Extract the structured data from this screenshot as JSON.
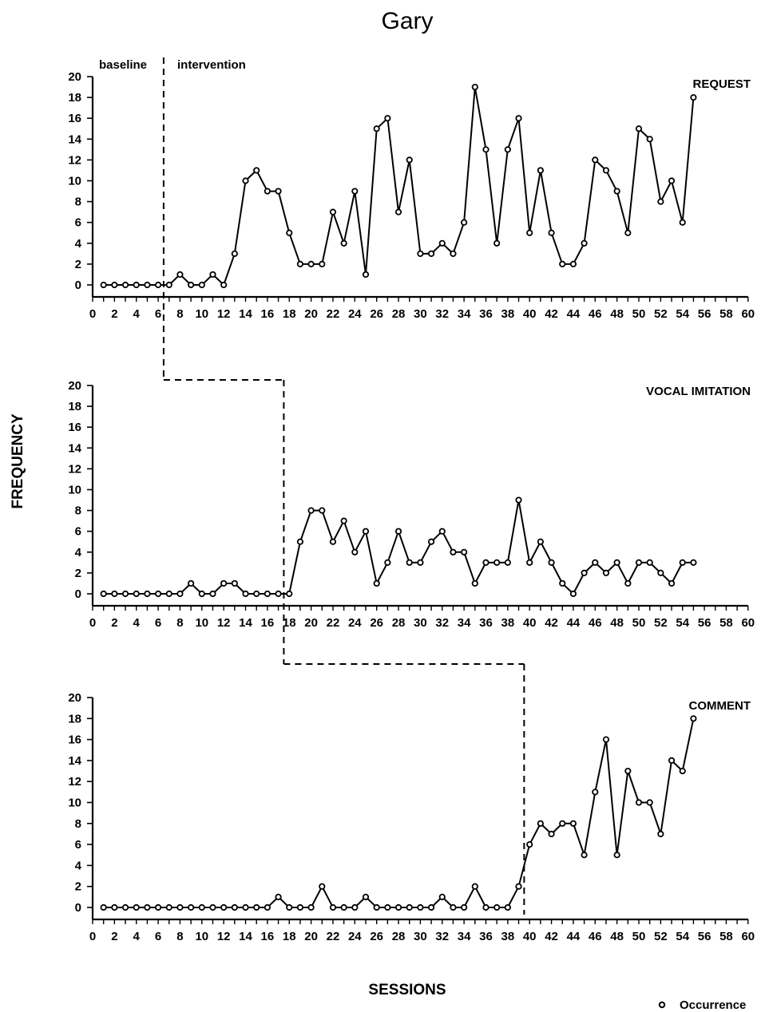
{
  "title": "Gary",
  "ylabel": "FREQUENCY",
  "xlabel": "SESSIONS",
  "legend_label": "Occurrence",
  "phase_labels": {
    "baseline": "baseline",
    "intervention": "intervention"
  },
  "chart_data": {
    "type": "line",
    "title": "Gary",
    "xlabel": "SESSIONS",
    "ylabel": "FREQUENCY",
    "xlim": [
      0,
      60
    ],
    "ylim": [
      0,
      20
    ],
    "x_ticks": [
      0,
      2,
      4,
      6,
      8,
      10,
      12,
      14,
      16,
      18,
      20,
      22,
      24,
      26,
      28,
      30,
      32,
      34,
      36,
      38,
      40,
      42,
      44,
      46,
      48,
      50,
      52,
      54,
      56,
      58,
      60
    ],
    "y_ticks": [
      0,
      2,
      4,
      6,
      8,
      10,
      12,
      14,
      16,
      18,
      20
    ],
    "legend": [
      "Occurrence"
    ],
    "legend_position": "bottom-right",
    "grid": false,
    "panels": [
      {
        "name": "REQUEST",
        "phase_change_after_session": 6.5,
        "x": [
          1,
          2,
          3,
          4,
          5,
          6,
          7,
          8,
          9,
          10,
          11,
          12,
          13,
          14,
          15,
          16,
          17,
          18,
          19,
          20,
          21,
          22,
          23,
          24,
          25,
          26,
          27,
          28,
          29,
          30,
          31,
          32,
          33,
          34,
          35,
          36,
          37,
          38,
          39,
          40,
          41,
          42,
          43,
          44,
          45,
          46,
          47,
          48,
          49,
          50,
          51,
          52,
          53,
          54,
          55
        ],
        "y": [
          0,
          0,
          0,
          0,
          0,
          0,
          0,
          1,
          0,
          0,
          1,
          0,
          3,
          10,
          11,
          9,
          9,
          5,
          2,
          2,
          2,
          7,
          4,
          9,
          1,
          15,
          16,
          7,
          12,
          3,
          3,
          4,
          3,
          6,
          19,
          13,
          4,
          13,
          16,
          5,
          11,
          5,
          2,
          2,
          4,
          12,
          11,
          9,
          5,
          15,
          14,
          8,
          10,
          6,
          18
        ]
      },
      {
        "name": "VOCAL IMITATION",
        "phase_change_after_session": 17.5,
        "x": [
          1,
          2,
          3,
          4,
          5,
          6,
          7,
          8,
          9,
          10,
          11,
          12,
          13,
          14,
          15,
          16,
          17,
          18,
          19,
          20,
          21,
          22,
          23,
          24,
          25,
          26,
          27,
          28,
          29,
          30,
          31,
          32,
          33,
          34,
          35,
          36,
          37,
          38,
          39,
          40,
          41,
          42,
          43,
          44,
          45,
          46,
          47,
          48,
          49,
          50,
          51,
          52,
          53,
          54,
          55
        ],
        "y": [
          0,
          0,
          0,
          0,
          0,
          0,
          0,
          0,
          1,
          0,
          0,
          1,
          1,
          0,
          0,
          0,
          0,
          0,
          5,
          8,
          8,
          5,
          7,
          4,
          6,
          1,
          3,
          6,
          3,
          3,
          5,
          6,
          4,
          4,
          1,
          3,
          3,
          3,
          9,
          3,
          5,
          3,
          1,
          0,
          2,
          3,
          2,
          3,
          1,
          3,
          3,
          2,
          1,
          3,
          3
        ]
      },
      {
        "name": "COMMENT",
        "phase_change_after_session": 39.5,
        "x": [
          1,
          2,
          3,
          4,
          5,
          6,
          7,
          8,
          9,
          10,
          11,
          12,
          13,
          14,
          15,
          16,
          17,
          18,
          19,
          20,
          21,
          22,
          23,
          24,
          25,
          26,
          27,
          28,
          29,
          30,
          31,
          32,
          33,
          34,
          35,
          36,
          37,
          38,
          39,
          40,
          41,
          42,
          43,
          44,
          45,
          46,
          47,
          48,
          49,
          50,
          51,
          52,
          53,
          54,
          55
        ],
        "y": [
          0,
          0,
          0,
          0,
          0,
          0,
          0,
          0,
          0,
          0,
          0,
          0,
          0,
          0,
          0,
          0,
          1,
          0,
          0,
          0,
          2,
          0,
          0,
          0,
          1,
          0,
          0,
          0,
          0,
          0,
          0,
          1,
          0,
          0,
          2,
          0,
          0,
          0,
          2,
          6,
          8,
          7,
          8,
          8,
          5,
          11,
          16,
          5,
          13,
          10,
          10,
          7,
          14,
          13,
          18
        ]
      }
    ]
  }
}
